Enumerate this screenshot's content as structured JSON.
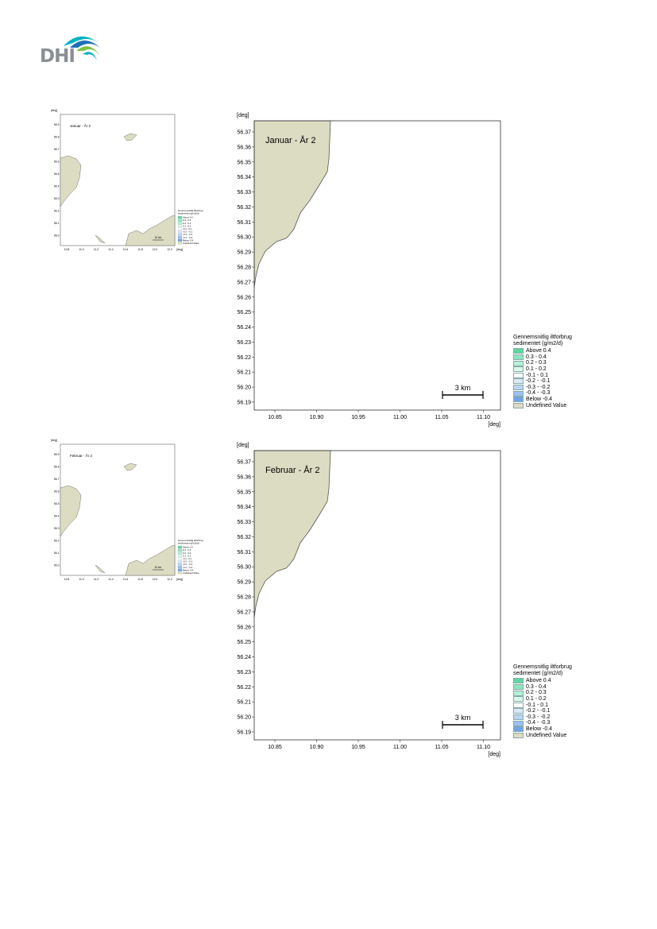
{
  "logo": {
    "text": "DHI",
    "colors": [
      "#00b1c1",
      "#1d71b8",
      "#7dc242"
    ]
  },
  "maps": [
    {
      "title": "Januar - År 2",
      "axis_unit_y": "[deg]",
      "axis_unit_x": "[deg]",
      "y_ticks": [
        "56.37",
        "56.36",
        "56.35",
        "56.34",
        "56.33",
        "56.32",
        "56.31",
        "56.30",
        "56.29",
        "56.28",
        "56.27",
        "56.26",
        "56.25",
        "56.24",
        "56.23",
        "56.22",
        "56.21",
        "56.20",
        "56.19"
      ],
      "x_ticks": [
        "10.85",
        "10.90",
        "10.95",
        "11.00",
        "11.05",
        "11.10"
      ],
      "scale_bar": "3 km"
    },
    {
      "title": "Februar - År 2",
      "axis_unit_y": "[deg]",
      "axis_unit_x": "[deg]",
      "y_ticks": [
        "56.37",
        "56.36",
        "56.35",
        "56.34",
        "56.33",
        "56.32",
        "56.31",
        "56.30",
        "56.29",
        "56.28",
        "56.27",
        "56.26",
        "56.25",
        "56.24",
        "56.23",
        "56.22",
        "56.21",
        "56.20",
        "56.19"
      ],
      "x_ticks": [
        "10.85",
        "10.90",
        "10.95",
        "11.00",
        "11.05",
        "11.10"
      ],
      "scale_bar": "3 km"
    }
  ],
  "legend": {
    "title_line1": "Gennemsnitlig iltforbrug",
    "title_line2": "sedimentet (g/m2/d)",
    "items": [
      {
        "label": "Above  0.4",
        "color": "#5ed8a0"
      },
      {
        "label": "0.3 -  0.4",
        "color": "#8ee6bf"
      },
      {
        "label": "0.2 -  0.3",
        "color": "#b6f0d6"
      },
      {
        "label": "0.1 -  0.2",
        "color": "#dcf8ea"
      },
      {
        "label": "-0.1 -  0.1",
        "color": "#ffffff"
      },
      {
        "label": "-0.2 - -0.1",
        "color": "#dce8f8"
      },
      {
        "label": "-0.3 - -0.2",
        "color": "#bcd4f4"
      },
      {
        "label": "-0.4 - -0.3",
        "color": "#9cc0f0"
      },
      {
        "label": "Below -0.4",
        "color": "#6ea4ea"
      },
      {
        "label": "Undefined Value",
        "color": "#dcdcc3"
      }
    ]
  },
  "thumbnails": [
    {
      "title": "Januar - År 2",
      "y_unit": "[deg]",
      "x_unit": "[deg]",
      "x_ticks": [
        "10.8",
        "11.0",
        "11.2",
        "11.4",
        "11.6",
        "11.8",
        "12.0",
        "12.2"
      ],
      "y_ticks": [
        "56.9",
        "56.8",
        "56.7",
        "56.6",
        "56.5",
        "56.4",
        "56.3",
        "56.2",
        "56.1",
        "56.0"
      ],
      "scale_bar": "10 km"
    },
    {
      "title": "Februar - År 2",
      "y_unit": "[deg]",
      "x_unit": "[deg]",
      "x_ticks": [
        "10.8",
        "11.0",
        "11.2",
        "11.4",
        "11.6",
        "11.8",
        "12.0",
        "12.2"
      ],
      "y_ticks": [
        "56.9",
        "56.8",
        "56.7",
        "56.6",
        "56.5",
        "56.4",
        "56.3",
        "56.2",
        "56.1",
        "56.0"
      ],
      "scale_bar": "10 km"
    }
  ]
}
